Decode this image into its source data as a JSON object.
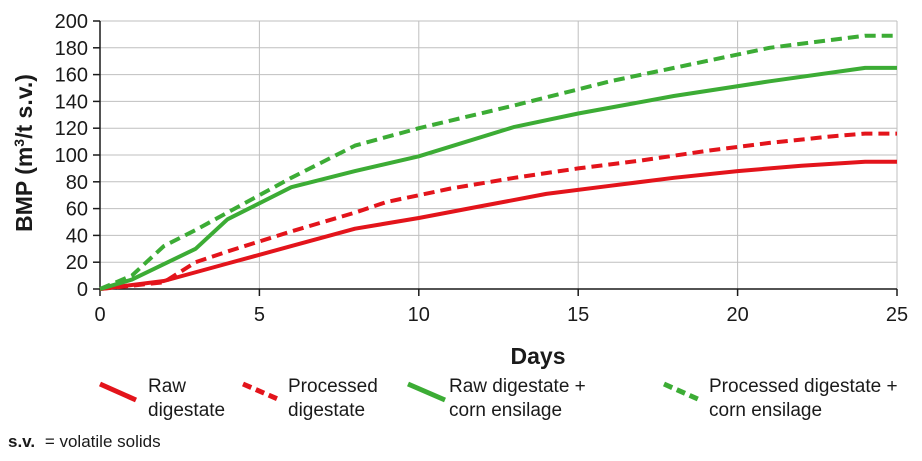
{
  "chart_data": {
    "type": "line",
    "title": "",
    "xlabel": "Days",
    "ylabel": "BMP (m³/t s.v.)",
    "xlim": [
      0,
      25
    ],
    "ylim": [
      0,
      200
    ],
    "xticks": [
      "0",
      "5",
      "10",
      "15",
      "20",
      "25"
    ],
    "yticks": [
      "0",
      "20",
      "40",
      "60",
      "80",
      "100",
      "120",
      "140",
      "160",
      "180",
      "200"
    ],
    "grid": "vertical at x ticks, horizontal at y ticks",
    "legend_position": "bottom",
    "series": [
      {
        "name_lines": [
          "Raw",
          "digestate"
        ],
        "color": "#e3141b",
        "dashed": false,
        "points": [
          [
            0,
            0
          ],
          [
            2,
            6
          ],
          [
            4,
            19
          ],
          [
            6,
            32
          ],
          [
            8,
            45
          ],
          [
            10,
            53
          ],
          [
            12,
            62
          ],
          [
            14,
            71
          ],
          [
            16,
            77
          ],
          [
            18,
            83
          ],
          [
            20,
            88
          ],
          [
            22,
            92
          ],
          [
            24,
            95
          ],
          [
            25,
            95
          ]
        ]
      },
      {
        "name_lines": [
          "Processed",
          "digestate"
        ],
        "color": "#e3141b",
        "dashed": true,
        "points": [
          [
            0,
            0
          ],
          [
            2,
            5
          ],
          [
            3,
            20
          ],
          [
            4,
            28
          ],
          [
            6,
            43
          ],
          [
            8,
            57
          ],
          [
            9,
            65
          ],
          [
            11,
            75
          ],
          [
            13,
            83
          ],
          [
            15,
            90
          ],
          [
            17,
            96
          ],
          [
            19,
            103
          ],
          [
            21,
            109
          ],
          [
            23,
            114
          ],
          [
            24,
            116
          ],
          [
            25,
            116
          ]
        ]
      },
      {
        "name_lines": [
          "Raw digestate +",
          "corn ensilage"
        ],
        "color": "#3cac35",
        "dashed": false,
        "points": [
          [
            0,
            0
          ],
          [
            1,
            7
          ],
          [
            3,
            30
          ],
          [
            4,
            52
          ],
          [
            6,
            76
          ],
          [
            8,
            88
          ],
          [
            10,
            99
          ],
          [
            13,
            121
          ],
          [
            15,
            131
          ],
          [
            18,
            144
          ],
          [
            21,
            155
          ],
          [
            24,
            165
          ],
          [
            25,
            165
          ]
        ]
      },
      {
        "name_lines": [
          "Processed digestate +",
          "corn ensilage"
        ],
        "color": "#3cac35",
        "dashed": true,
        "points": [
          [
            0,
            0
          ],
          [
            1,
            10
          ],
          [
            2,
            32
          ],
          [
            3,
            44
          ],
          [
            4,
            57
          ],
          [
            6,
            83
          ],
          [
            8,
            107
          ],
          [
            10,
            120
          ],
          [
            13,
            137
          ],
          [
            16,
            155
          ],
          [
            19,
            170
          ],
          [
            21,
            180
          ],
          [
            24,
            189
          ],
          [
            25,
            189
          ]
        ]
      }
    ],
    "footnote": {
      "term": "s.v.",
      "definition": "= volatile solids"
    }
  }
}
